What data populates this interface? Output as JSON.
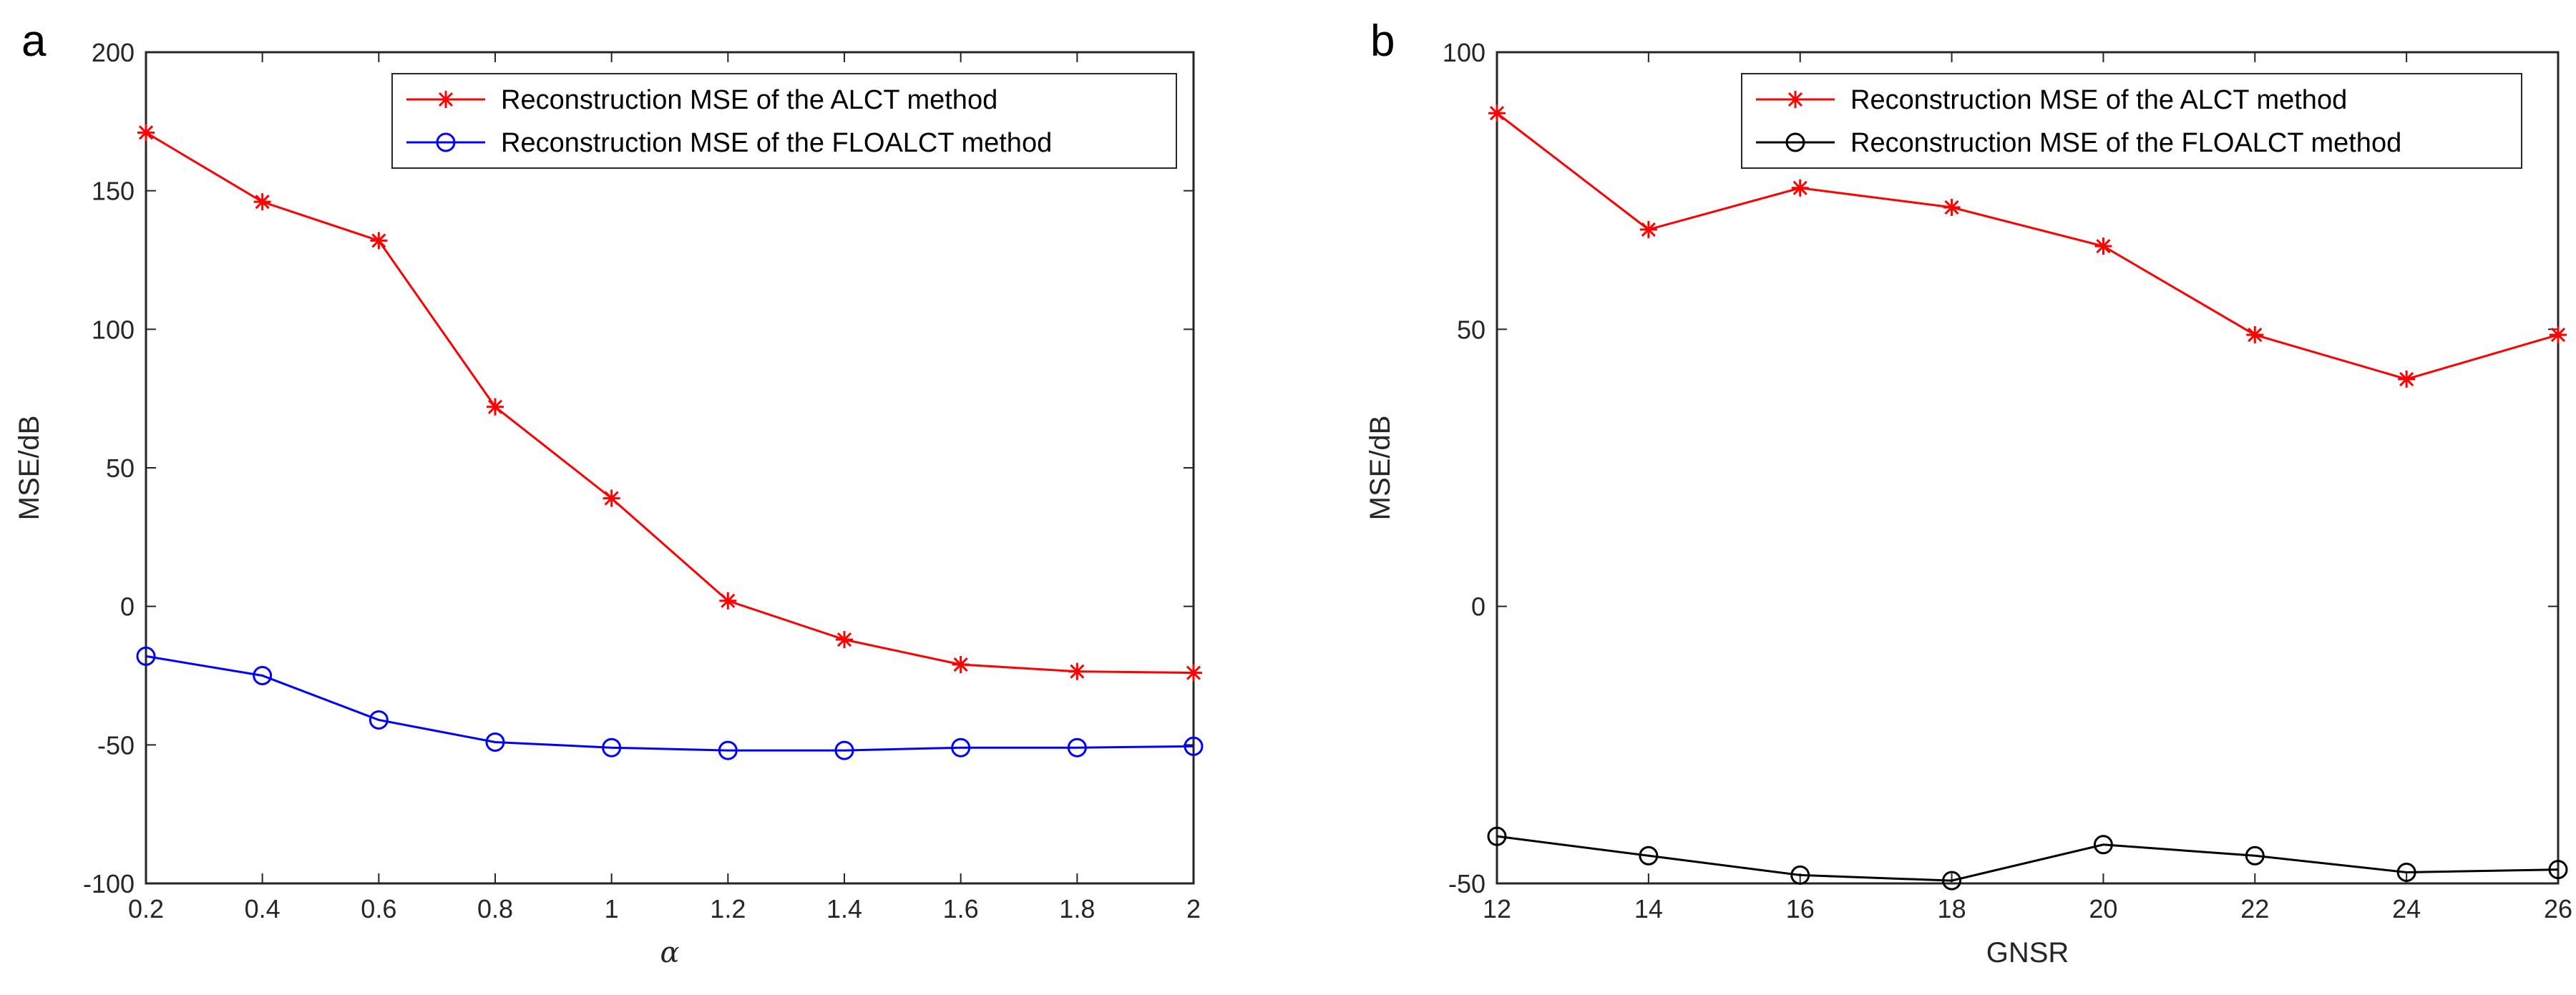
{
  "chart_data": [
    {
      "type": "line",
      "panel_label": "a",
      "title": "",
      "xlabel": "α",
      "ylabel": "MSE/dB",
      "xlim": [
        0.2,
        2
      ],
      "ylim": [
        -100,
        200
      ],
      "xticks": [
        "0.2",
        "0.4",
        "0.6",
        "0.8",
        "1",
        "1.2",
        "1.4",
        "1.6",
        "1.8",
        "2"
      ],
      "yticks": [
        "-100",
        "-50",
        "0",
        "50",
        "100",
        "150",
        "200"
      ],
      "legend_position": "top-right",
      "grid": false,
      "x": [
        0.2,
        0.4,
        0.6,
        0.8,
        1.0,
        1.2,
        1.4,
        1.6,
        1.8,
        2.0
      ],
      "series": [
        {
          "name": "Reconstruction MSE of the ALCT method",
          "color": "#ff0000",
          "marker": "asterisk",
          "values": [
            171,
            146,
            132,
            72,
            39,
            2,
            -12,
            -21,
            -23.5,
            -24
          ]
        },
        {
          "name": "Reconstruction MSE of the FLOALCT method",
          "color": "#0000ff",
          "marker": "circle",
          "values": [
            -18,
            -25,
            -41,
            -49,
            -51,
            -52,
            -52,
            -51,
            -51,
            -50.5
          ]
        }
      ]
    },
    {
      "type": "line",
      "panel_label": "b",
      "title": "",
      "xlabel": "GNSR",
      "ylabel": "MSE/dB",
      "xlim": [
        12,
        26
      ],
      "ylim": [
        -50,
        100
      ],
      "xticks": [
        "12",
        "14",
        "16",
        "18",
        "20",
        "22",
        "24",
        "26"
      ],
      "yticks": [
        "-50",
        "0",
        "50",
        "100"
      ],
      "legend_position": "top-right",
      "grid": false,
      "x": [
        12,
        14,
        16,
        18,
        20,
        22,
        24,
        26
      ],
      "series": [
        {
          "name": "Reconstruction MSE of the ALCT method",
          "color": "#ff0000",
          "marker": "asterisk",
          "values": [
            89,
            68,
            75.5,
            72,
            65,
            49,
            41,
            49
          ]
        },
        {
          "name": "Reconstruction MSE of the FLOALCT method",
          "color": "#000000",
          "marker": "circle",
          "values": [
            -41.5,
            -45,
            -48.5,
            -49.5,
            -43,
            -45,
            -48,
            -47.5
          ]
        }
      ]
    }
  ]
}
